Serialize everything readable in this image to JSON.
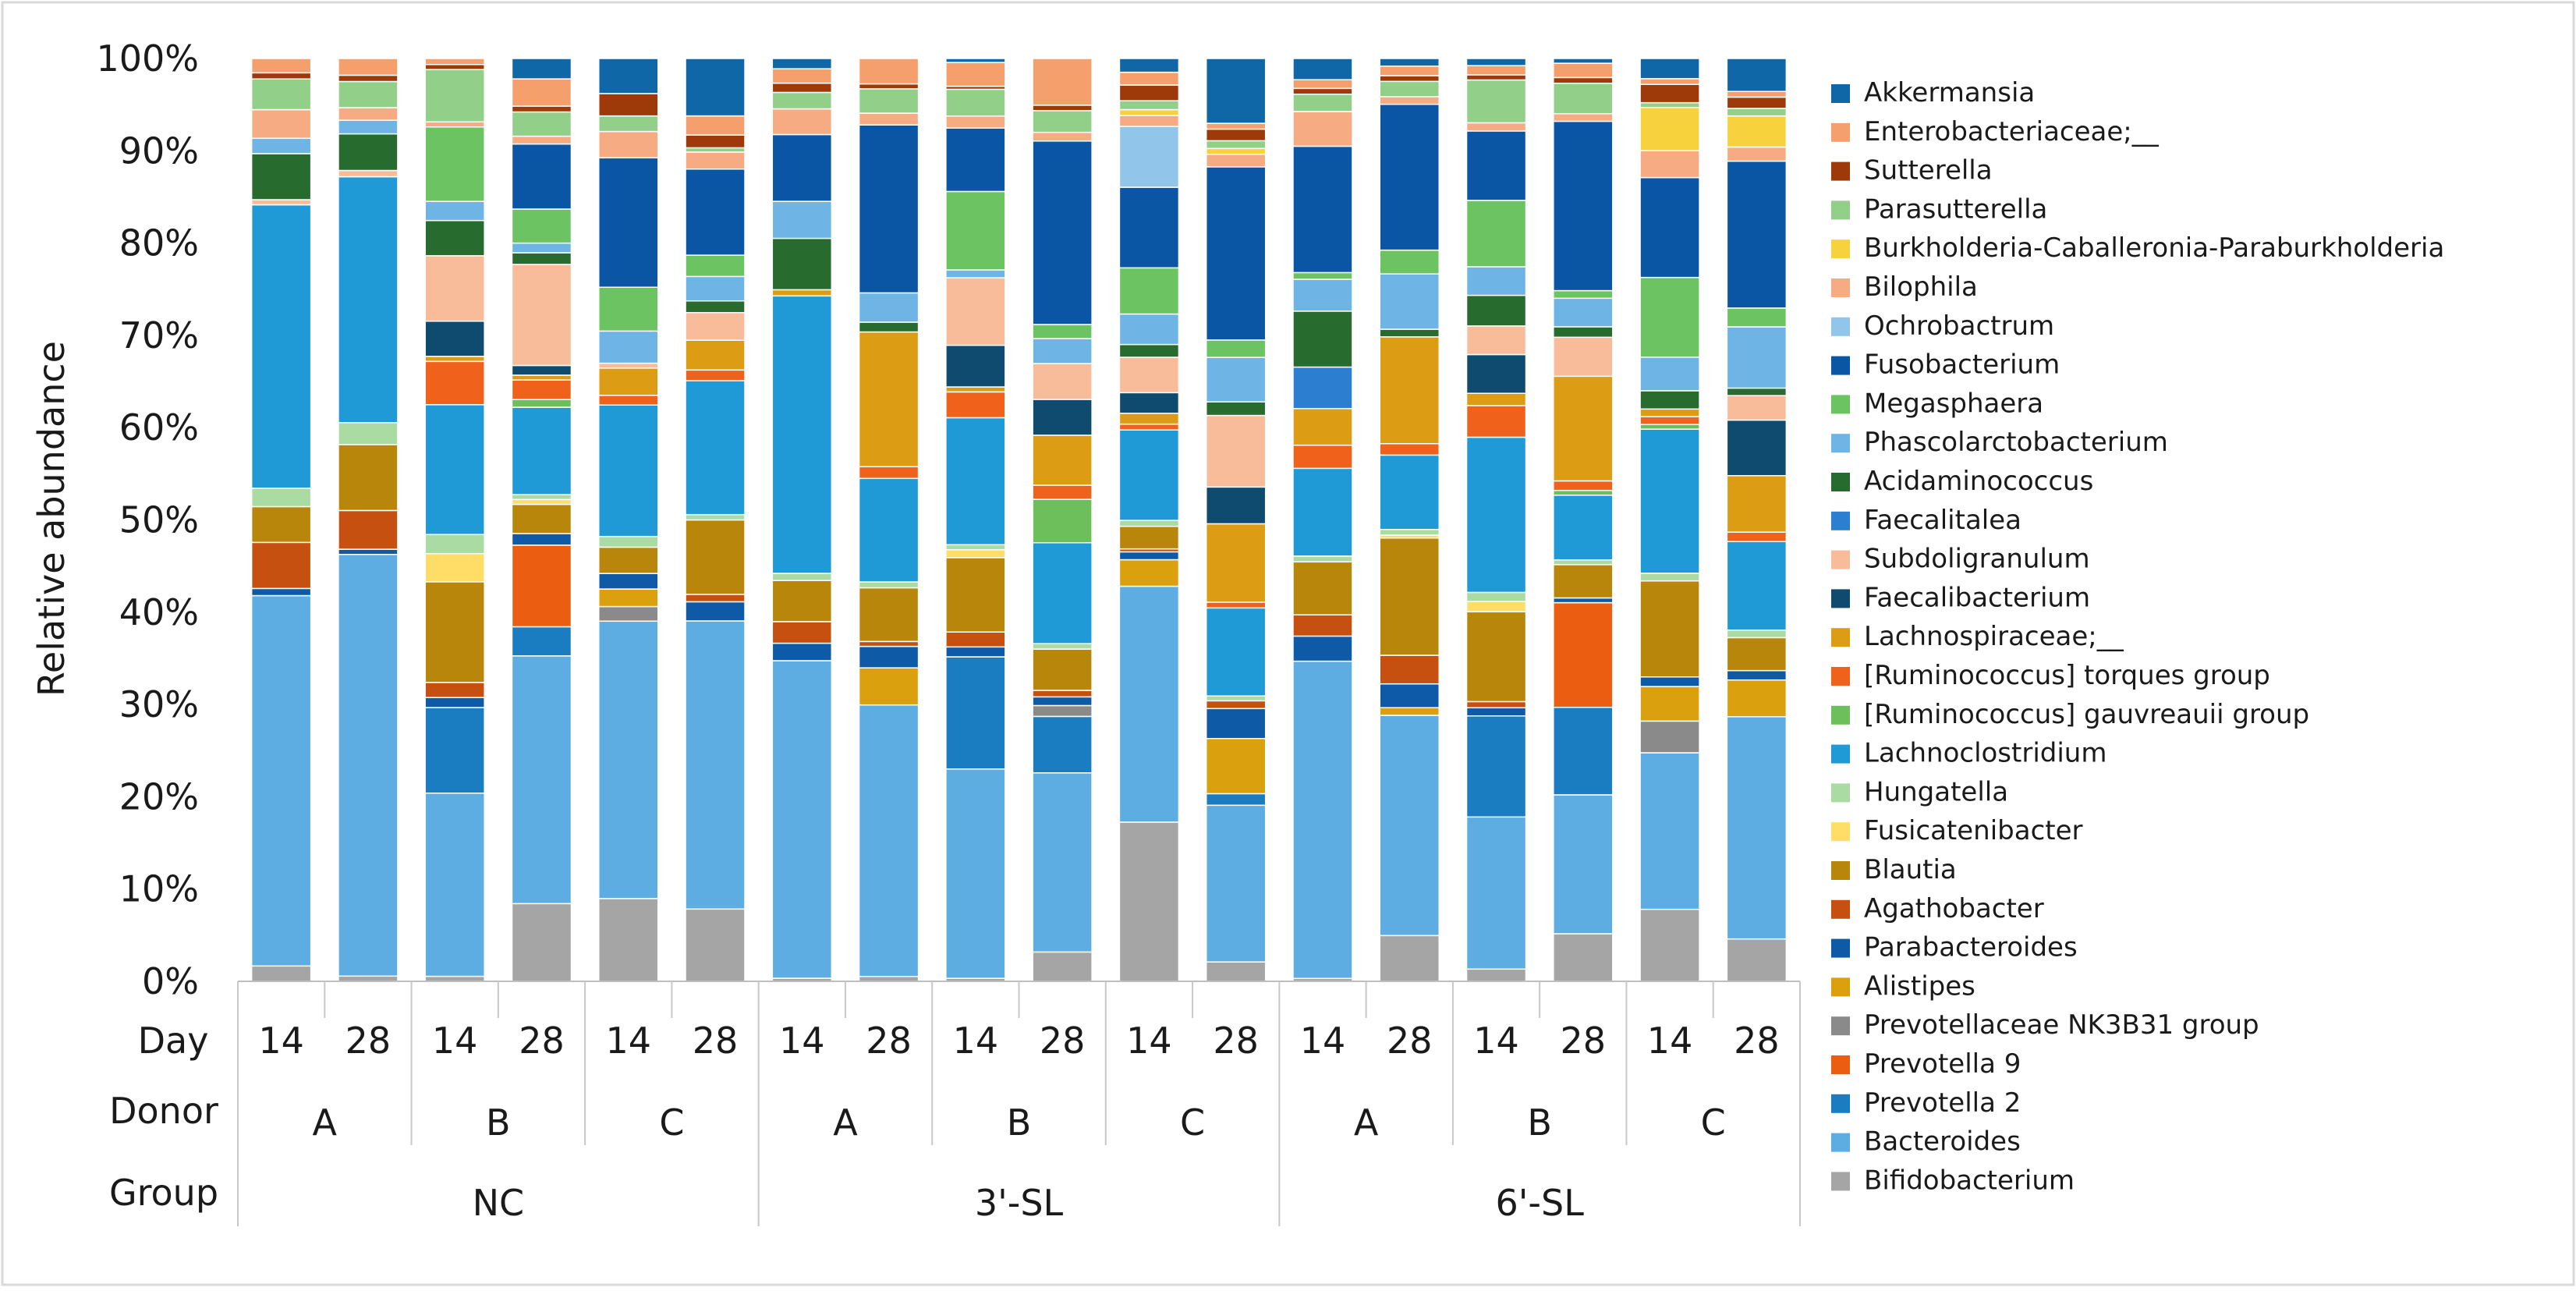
{
  "chart_data": {
    "type": "bar",
    "stacked": true,
    "ylabel": "Relative abundance",
    "ylim": [
      0,
      100
    ],
    "yticks": [
      "0%",
      "10%",
      "20%",
      "30%",
      "40%",
      "50%",
      "60%",
      "70%",
      "80%",
      "90%",
      "100%"
    ],
    "grid": false,
    "legend_position": "right",
    "row_labels": {
      "day": "Day",
      "donor": "Donor",
      "group": "Group"
    },
    "bars": [
      {
        "day": "14",
        "donor": "A",
        "group": "NC"
      },
      {
        "day": "28",
        "donor": "A",
        "group": "NC"
      },
      {
        "day": "14",
        "donor": "B",
        "group": "NC"
      },
      {
        "day": "28",
        "donor": "B",
        "group": "NC"
      },
      {
        "day": "14",
        "donor": "C",
        "group": "NC"
      },
      {
        "day": "28",
        "donor": "C",
        "group": "NC"
      },
      {
        "day": "14",
        "donor": "A",
        "group": "3'-SL"
      },
      {
        "day": "28",
        "donor": "A",
        "group": "3'-SL"
      },
      {
        "day": "14",
        "donor": "B",
        "group": "3'-SL"
      },
      {
        "day": "28",
        "donor": "B",
        "group": "3'-SL"
      },
      {
        "day": "14",
        "donor": "C",
        "group": "3'-SL"
      },
      {
        "day": "28",
        "donor": "C",
        "group": "3'-SL"
      },
      {
        "day": "14",
        "donor": "A",
        "group": "6'-SL"
      },
      {
        "day": "28",
        "donor": "A",
        "group": "6'-SL"
      },
      {
        "day": "14",
        "donor": "B",
        "group": "6'-SL"
      },
      {
        "day": "28",
        "donor": "B",
        "group": "6'-SL"
      },
      {
        "day": "14",
        "donor": "C",
        "group": "6'-SL"
      },
      {
        "day": "28",
        "donor": "C",
        "group": "6'-SL"
      }
    ],
    "donor_labels": [
      "A",
      "B",
      "C",
      "A",
      "B",
      "C",
      "A",
      "B",
      "C"
    ],
    "group_labels": [
      "NC",
      "3'-SL",
      "6'-SL"
    ],
    "series": [
      {
        "name": "Bifidobacterium",
        "color": "#a5a5a5",
        "values": [
          1.5,
          0.5,
          0.5,
          8.0,
          8.5,
          6.8,
          0.3,
          0.5,
          0.3,
          2.7,
          16.2,
          2.0,
          0.3,
          4.8,
          1.2,
          5.0,
          7.5,
          4.5
        ]
      },
      {
        "name": "Bacteroides",
        "color": "#5dade2",
        "values": [
          36.2,
          40.3,
          18.2,
          25.5,
          28.5,
          27.1,
          30.9,
          27.8,
          21.1,
          16.5,
          24.0,
          16.2,
          32.9,
          23.1,
          14.9,
          14.6,
          16.3,
          23.6
        ]
      },
      {
        "name": "Prevotella 2",
        "color": "#1a7cc1",
        "values": [
          0.0,
          0.0,
          8.5,
          3.0,
          0.0,
          0.0,
          0.0,
          0.0,
          11.3,
          5.2,
          0.0,
          1.2,
          0.0,
          0.0,
          9.9,
          9.2,
          0.0,
          0.0
        ]
      },
      {
        "name": "Prevotella 9",
        "color": "#eb5e12",
        "values": [
          0.0,
          0.0,
          0.0,
          8.4,
          0.0,
          0.0,
          0.0,
          0.0,
          0.0,
          0.0,
          0.0,
          0.0,
          0.0,
          0.0,
          0.0,
          11.0,
          0.0,
          0.0
        ]
      },
      {
        "name": "Prevotellaceae NK3B31 group",
        "color": "#8a8a8a",
        "values": [
          0.0,
          0.0,
          0.0,
          0.0,
          1.5,
          0.0,
          0.0,
          0.0,
          0.0,
          1.0,
          0.0,
          0.0,
          0.0,
          0.0,
          0.0,
          0.0,
          3.3,
          0.0
        ]
      },
      {
        "name": "Alistipes",
        "color": "#daa00e",
        "values": [
          0.0,
          0.0,
          0.0,
          0.0,
          1.8,
          0.0,
          0.0,
          3.8,
          0.0,
          0.0,
          2.7,
          5.7,
          0.0,
          0.8,
          0.0,
          0.0,
          3.6,
          3.9
        ]
      },
      {
        "name": "Parabacteroides",
        "color": "#0e5aa7",
        "values": [
          0.7,
          0.5,
          1.0,
          1.2,
          1.6,
          1.8,
          1.7,
          2.2,
          1.0,
          0.8,
          0.8,
          3.1,
          2.6,
          2.5,
          0.8,
          0.5,
          1.0,
          1.0
        ]
      },
      {
        "name": "Agathobacter",
        "color": "#c5500f",
        "values": [
          4.5,
          3.7,
          1.5,
          0.0,
          0.0,
          0.7,
          2.1,
          0.5,
          1.5,
          0.6,
          0.3,
          0.8,
          2.2,
          3.0,
          0.6,
          0.0,
          0.0,
          0.0
        ]
      },
      {
        "name": "Blautia",
        "color": "#b8860b",
        "values": [
          3.5,
          6.3,
          10.0,
          3.0,
          2.7,
          7.0,
          4.0,
          5.5,
          7.5,
          3.8,
          2.3,
          0.0,
          5.5,
          12.3,
          8.8,
          3.5,
          10.0,
          3.5
        ]
      },
      {
        "name": "Fusicatenibacter",
        "color": "#ffdd66",
        "values": [
          0.0,
          0.0,
          2.8,
          0.5,
          0.0,
          0.0,
          0.0,
          0.0,
          0.8,
          0.0,
          0.0,
          0.0,
          0.0,
          0.3,
          1.0,
          0.0,
          0.0,
          0.0
        ]
      },
      {
        "name": "Hungatella",
        "color": "#a9dba3",
        "values": [
          1.8,
          2.1,
          1.9,
          0.5,
          1.1,
          0.5,
          0.7,
          0.6,
          0.5,
          0.5,
          0.6,
          0.5,
          0.6,
          0.6,
          0.9,
          0.5,
          0.8,
          0.8
        ]
      },
      {
        "name": "Lachnoclostridium",
        "color": "#1f9ad6",
        "values": [
          27.7,
          23.5,
          12.9,
          9.0,
          13.5,
          12.6,
          27.0,
          10.6,
          12.8,
          9.3,
          9.2,
          9.1,
          9.1,
          7.8,
          15.2,
          6.8,
          15.0,
          9.4
        ]
      },
      {
        "name": "[Ruminococcus] gauvreauii group",
        "color": "#6cbf5a",
        "values": [
          0.0,
          0.0,
          0.0,
          0.8,
          0.0,
          0.0,
          0.0,
          0.0,
          0.0,
          4.0,
          0.0,
          0.0,
          0.0,
          0.0,
          0.0,
          0.5,
          0.5,
          0.0
        ]
      },
      {
        "name": "[Ruminococcus] torques group",
        "color": "#f0621b",
        "values": [
          0.0,
          0.0,
          4.3,
          2.0,
          1.0,
          1.0,
          0.0,
          1.2,
          2.6,
          1.3,
          0.6,
          0.6,
          2.4,
          1.2,
          3.1,
          1.0,
          0.8,
          1.0
        ]
      },
      {
        "name": "Lachnospiraceae;__",
        "color": "#dc9c14",
        "values": [
          0.0,
          0.0,
          0.5,
          0.5,
          2.8,
          2.8,
          0.6,
          13.8,
          0.5,
          4.6,
          1.1,
          8.1,
          3.8,
          11.2,
          1.2,
          11.0,
          0.8,
          6.0
        ]
      },
      {
        "name": "Faecalibacterium",
        "color": "#0f4a6f",
        "values": [
          0.0,
          0.0,
          3.5,
          1.0,
          0.0,
          0.0,
          0.0,
          0.0,
          4.2,
          3.3,
          2.1,
          3.8,
          0.0,
          0.0,
          3.8,
          0.0,
          0.0,
          5.9
        ]
      },
      {
        "name": "Subdoligranulum",
        "color": "#f8bc9b",
        "values": [
          0.5,
          0.6,
          6.5,
          10.4,
          0.5,
          2.6,
          0.0,
          0.0,
          6.8,
          3.3,
          3.6,
          7.4,
          0.0,
          0.0,
          2.8,
          4.1,
          0.0,
          2.6
        ]
      },
      {
        "name": "Faecalitalea",
        "color": "#2c7fd0",
        "values": [
          0.0,
          0.0,
          0.0,
          0.0,
          0.0,
          0.0,
          0.0,
          0.0,
          0.0,
          0.0,
          0.0,
          0.0,
          4.3,
          0.0,
          0.0,
          0.0,
          0.0,
          0.0
        ]
      },
      {
        "name": "Acidaminococcus",
        "color": "#276b2e",
        "values": [
          4.5,
          3.5,
          3.5,
          1.2,
          0.0,
          1.1,
          5.0,
          1.0,
          0.0,
          0.0,
          1.3,
          1.4,
          5.8,
          0.8,
          3.0,
          1.1,
          1.9,
          0.8
        ]
      },
      {
        "name": "Phascolarctobacterium",
        "color": "#6eb4e4",
        "values": [
          1.5,
          1.3,
          1.9,
          1.0,
          3.3,
          2.3,
          3.6,
          3.0,
          0.8,
          2.3,
          3.1,
          4.6,
          3.3,
          5.8,
          2.8,
          3.0,
          3.5,
          6.5
        ]
      },
      {
        "name": "Megasphaera",
        "color": "#6cc362",
        "values": [
          0.0,
          0.0,
          7.4,
          3.5,
          4.5,
          2.0,
          0.0,
          0.0,
          7.9,
          1.3,
          4.7,
          1.8,
          0.7,
          2.5,
          6.5,
          0.8,
          8.3,
          2.0
        ]
      },
      {
        "name": "Fusobacterium",
        "color": "#0a55a4",
        "values": [
          0.0,
          0.0,
          0.0,
          6.7,
          13.3,
          8.1,
          6.5,
          17.2,
          6.4,
          16.9,
          8.2,
          17.9,
          13.1,
          15.3,
          6.8,
          17.8,
          10.4,
          15.6
        ]
      },
      {
        "name": "Ochrobactrum",
        "color": "#92c5ea",
        "values": [
          0.0,
          0.0,
          0.0,
          0.0,
          0.0,
          0.0,
          0.0,
          0.0,
          0.0,
          0.0,
          6.2,
          0.0,
          0.0,
          0.0,
          0.0,
          0.0,
          0.0,
          0.0
        ]
      },
      {
        "name": "Bilophila",
        "color": "#f6ab83",
        "values": [
          2.8,
          1.2,
          0.5,
          0.8,
          2.7,
          1.6,
          2.5,
          1.2,
          1.2,
          0.8,
          1.1,
          1.3,
          3.6,
          0.8,
          0.8,
          0.8,
          2.8,
          1.5
        ]
      },
      {
        "name": "Burkholderia-Caballeronia-Paraburkholderia",
        "color": "#f8d23c",
        "values": [
          0.0,
          0.0,
          0.0,
          0.0,
          0.0,
          0.0,
          0.0,
          0.0,
          0.0,
          0.0,
          0.6,
          0.6,
          0.0,
          0.0,
          0.0,
          0.0,
          4.5,
          3.3
        ]
      },
      {
        "name": "Parasutterella",
        "color": "#92d08a",
        "values": [
          3.0,
          2.5,
          5.2,
          2.5,
          1.6,
          0.4,
          1.6,
          2.5,
          2.7,
          2.0,
          0.9,
          0.8,
          1.8,
          1.6,
          4.2,
          3.2,
          0.5,
          0.8
        ]
      },
      {
        "name": "Sutterella",
        "color": "#9e3a0a",
        "values": [
          0.6,
          0.6,
          0.5,
          0.6,
          2.3,
          1.2,
          0.9,
          0.5,
          0.3,
          0.5,
          1.6,
          1.2,
          0.6,
          0.6,
          0.5,
          0.6,
          1.9,
          1.2
        ]
      },
      {
        "name": "Enterobacteriaceae;__",
        "color": "#f5a06c",
        "values": [
          1.4,
          1.6,
          0.6,
          2.8,
          0.0,
          1.8,
          1.4,
          2.6,
          2.4,
          4.3,
          1.3,
          0.6,
          0.9,
          1.0,
          0.9,
          1.5,
          0.6,
          0.6
        ]
      },
      {
        "name": "Akkermansia",
        "color": "#1067a8",
        "values": [
          0.0,
          0.0,
          0.0,
          2.1,
          3.6,
          5.4,
          1.0,
          0.0,
          0.4,
          0.0,
          1.4,
          6.7,
          2.2,
          0.8,
          0.7,
          0.5,
          2.1,
          3.5
        ]
      }
    ]
  }
}
